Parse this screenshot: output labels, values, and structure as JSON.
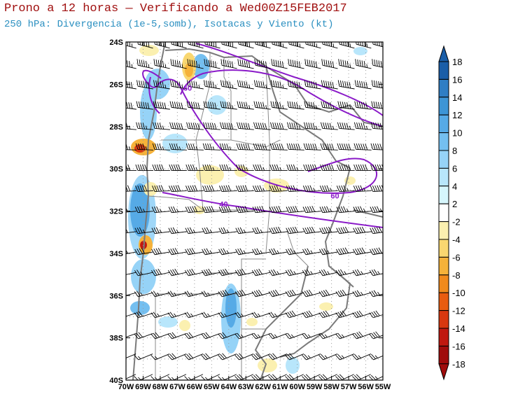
{
  "header": {
    "title": "Prono a 12 horas — Verificando a Wed00Z15FEB2017",
    "subtitle": "250 hPa: Divergencia (1e-5,somb), Isotacas y Viento (kt)"
  },
  "map": {
    "lat_ticks": [
      "24S",
      "26S",
      "28S",
      "30S",
      "32S",
      "34S",
      "36S",
      "38S",
      "40S"
    ],
    "lon_ticks": [
      "70W",
      "69W",
      "68W",
      "67W",
      "66W",
      "65W",
      "64W",
      "63W",
      "62W",
      "61W",
      "60W",
      "59W",
      "58W",
      "57W",
      "56W",
      "55W"
    ],
    "lat_range": [
      -40,
      -24
    ],
    "lon_range": [
      -70,
      -55
    ],
    "isotach_labels": [
      {
        "text": "60",
        "lon": -66.4,
        "lat": -26.3
      },
      {
        "text": "60",
        "lon": -57.8,
        "lat": -31.4
      },
      {
        "text": "40",
        "lon": -64.3,
        "lat": -31.8
      }
    ],
    "colors": {
      "isotach": "#8a1ac8",
      "border": "#7a7a7a",
      "grid": "#9a9a9a"
    }
  },
  "colorbar": {
    "levels": [
      "18",
      "16",
      "14",
      "12",
      "10",
      "8",
      "6",
      "4",
      "2",
      "-2",
      "-4",
      "-6",
      "-8",
      "-10",
      "-12",
      "-14",
      "-16",
      "-18"
    ],
    "colors": [
      "#1a5ea8",
      "#2f7ec4",
      "#3d95d6",
      "#56aae6",
      "#74bff0",
      "#96d3f7",
      "#b8e6fb",
      "#d6f6fc",
      "#ffffff",
      "#fbf0b0",
      "#f9d770",
      "#f5b23a",
      "#f08a1c",
      "#e85c10",
      "#d83810",
      "#c01810",
      "#a00c0c",
      "#a00c0c"
    ]
  }
}
